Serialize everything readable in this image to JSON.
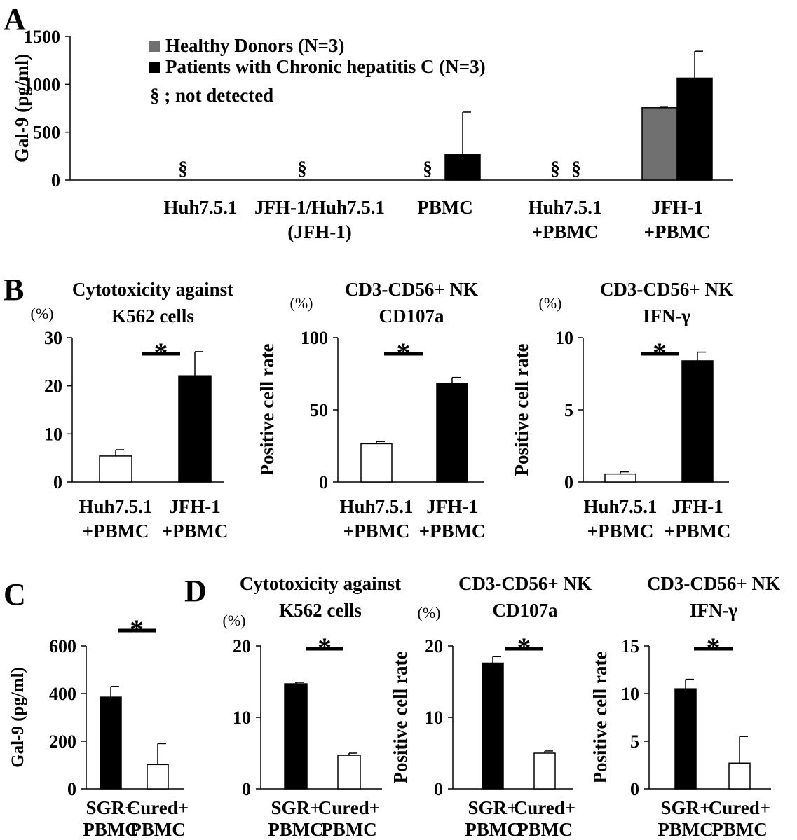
{
  "colors": {
    "healthy": "#707070",
    "patient": "#000000",
    "open": "#ffffff",
    "stroke": "#000000"
  },
  "chart_data": [
    {
      "panel": "A",
      "type": "bar",
      "ylabel": "Gal-9 (pg/ml)",
      "ylim": [
        0,
        1500
      ],
      "yticks": [
        "0",
        "500",
        "1000",
        "1500"
      ],
      "ytick_values": [
        0,
        500,
        1000,
        1500
      ],
      "legend": {
        "items": [
          {
            "label": "Healthy Donors (N=3)",
            "color": "#707070"
          },
          {
            "label": "Patients with Chronic hepatitis C (N=3)",
            "color": "#000000"
          }
        ],
        "note": "§ ; not detected",
        "placement": "top-left"
      },
      "categories": [
        {
          "lines": [
            "Huh7.5.1"
          ]
        },
        {
          "lines": [
            "JFH-1/Huh7.5.1",
            "(JFH-1)"
          ]
        },
        {
          "lines": [
            "PBMC"
          ]
        },
        {
          "lines": [
            "Huh7.5.1",
            "+PBMC"
          ]
        },
        {
          "lines": [
            "JFH-1",
            "+PBMC"
          ]
        }
      ],
      "series": [
        {
          "name": "Healthy Donors (N=3)",
          "values": [
            null,
            null,
            null,
            null,
            755
          ],
          "errors": [
            null,
            null,
            null,
            null,
            5
          ],
          "not_detected": [
            true,
            true,
            true,
            true,
            false
          ]
        },
        {
          "name": "Patients with Chronic hepatitis C (N=3)",
          "values": [
            null,
            null,
            265,
            null,
            1065
          ],
          "errors": [
            null,
            null,
            445,
            null,
            280
          ],
          "not_detected": [
            false,
            false,
            false,
            true,
            false
          ]
        }
      ],
      "not_detected_mark": "§"
    },
    {
      "panel": "B",
      "type": "bar",
      "title": [
        "Cytotoxicity against",
        "K562 cells"
      ],
      "unit": "(%)",
      "ylabel": "",
      "ylim": [
        0,
        30
      ],
      "yticks": [
        "0",
        "10",
        "20",
        "30"
      ],
      "ytick_values": [
        0,
        10,
        20,
        30
      ],
      "categories": [
        {
          "lines": [
            "Huh7.5.1",
            "+PBMC"
          ]
        },
        {
          "lines": [
            "JFH-1",
            "+PBMC"
          ]
        }
      ],
      "values": [
        5.4,
        22.1
      ],
      "errors": [
        1.3,
        5.0
      ],
      "fills": [
        "open",
        "filled"
      ],
      "significance": "*"
    },
    {
      "panel": "",
      "type": "bar",
      "title": [
        "CD3-CD56+ NK",
        "CD107a"
      ],
      "unit": "(%)",
      "ylabel": "Positive cell rate",
      "ylim": [
        0,
        100
      ],
      "yticks": [
        "0",
        "50",
        "100"
      ],
      "ytick_values": [
        0,
        50,
        100
      ],
      "categories": [
        {
          "lines": [
            "Huh7.5.1",
            "+PBMC"
          ]
        },
        {
          "lines": [
            "JFH-1",
            "+PBMC"
          ]
        }
      ],
      "values": [
        26.5,
        68.5
      ],
      "errors": [
        1.5,
        4.0
      ],
      "fills": [
        "open",
        "filled"
      ],
      "significance": "*"
    },
    {
      "panel": "",
      "type": "bar",
      "title": [
        "CD3-CD56+ NK",
        "IFN-γ"
      ],
      "unit": "(%)",
      "ylabel": "Positive cell rate",
      "ylim": [
        0,
        10
      ],
      "yticks": [
        "0",
        "5",
        "10"
      ],
      "ytick_values": [
        0,
        5,
        10
      ],
      "categories": [
        {
          "lines": [
            "Huh7.5.1",
            "+PBMC"
          ]
        },
        {
          "lines": [
            "JFH-1",
            "+PBMC"
          ]
        }
      ],
      "values": [
        0.55,
        8.4
      ],
      "errors": [
        0.15,
        0.6
      ],
      "fills": [
        "open",
        "filled"
      ],
      "significance": "*"
    },
    {
      "panel": "C",
      "type": "bar",
      "title": [],
      "unit": "",
      "ylabel": "Gal-9 (pg/ml)",
      "ylim": [
        0,
        600
      ],
      "yticks": [
        "0",
        "200",
        "400",
        "600"
      ],
      "ytick_values": [
        0,
        200,
        400,
        600
      ],
      "categories": [
        {
          "lines": [
            "SGR+",
            "PBMC"
          ]
        },
        {
          "lines": [
            "Cured+",
            "PBMC"
          ]
        }
      ],
      "values": [
        385,
        102
      ],
      "errors": [
        45,
        88
      ],
      "fills": [
        "filled",
        "open"
      ],
      "significance": "*"
    },
    {
      "panel": "D",
      "type": "bar",
      "title": [
        "Cytotoxicity against",
        "K562 cells"
      ],
      "unit": "(%)",
      "ylabel": "",
      "ylim": [
        0,
        20
      ],
      "yticks": [
        "0",
        "10",
        "20"
      ],
      "ytick_values": [
        0,
        10,
        20
      ],
      "categories": [
        {
          "lines": [
            "SGR+",
            "PBMC"
          ]
        },
        {
          "lines": [
            "Cured+",
            "PBMC"
          ]
        }
      ],
      "values": [
        14.7,
        4.7
      ],
      "errors": [
        0.2,
        0.3
      ],
      "fills": [
        "filled",
        "open"
      ],
      "significance": "*"
    },
    {
      "panel": "",
      "type": "bar",
      "title": [
        "CD3-CD56+ NK",
        "CD107a"
      ],
      "unit": "(%)",
      "ylabel": "Positive cell rate",
      "ylim": [
        0,
        20
      ],
      "yticks": [
        "0",
        "10",
        "20"
      ],
      "ytick_values": [
        0,
        10,
        20
      ],
      "categories": [
        {
          "lines": [
            "SGR+",
            "PBMC"
          ]
        },
        {
          "lines": [
            "Cured+",
            "PBMC"
          ]
        }
      ],
      "values": [
        17.6,
        5.0
      ],
      "errors": [
        0.9,
        0.3
      ],
      "fills": [
        "filled",
        "open"
      ],
      "significance": "*"
    },
    {
      "panel": "",
      "type": "bar",
      "title": [
        "CD3-CD56+ NK",
        "IFN-γ"
      ],
      "unit": "",
      "ylabel": "Positive cell rate",
      "ylim": [
        0,
        15
      ],
      "yticks": [
        "0",
        "5",
        "10",
        "15"
      ],
      "ytick_values": [
        0,
        5,
        10,
        15
      ],
      "categories": [
        {
          "lines": [
            "SGR+",
            "PBMC"
          ]
        },
        {
          "lines": [
            "Cured+",
            "PBMC"
          ]
        }
      ],
      "values": [
        10.5,
        2.7
      ],
      "errors": [
        1.0,
        2.8
      ],
      "fills": [
        "filled",
        "open"
      ],
      "significance": "*"
    }
  ]
}
